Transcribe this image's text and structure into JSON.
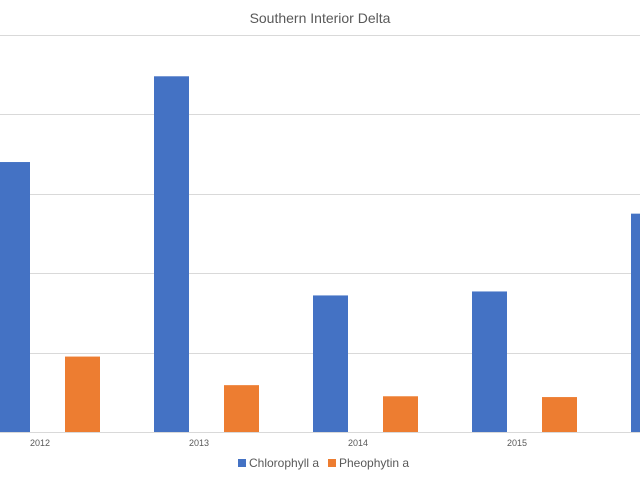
{
  "chart_data": {
    "type": "bar",
    "title": "Southern Interior Delta",
    "xlabel": "",
    "ylabel": "",
    "categories": [
      "2012",
      "2013",
      "2014",
      "2015",
      ""
    ],
    "series": [
      {
        "name": "Chlorophyll a",
        "color": "#4472C4",
        "values": [
          3.4,
          4.48,
          1.72,
          1.77,
          2.75
        ]
      },
      {
        "name": "Pheophytin a",
        "color": "#ED7D31",
        "values": [
          0.95,
          0.59,
          0.45,
          0.44,
          null
        ]
      }
    ],
    "ylim": [
      0,
      5
    ],
    "y_ticks": [
      0,
      1,
      2,
      3,
      4,
      5
    ],
    "grid": true,
    "legend_position": "bottom"
  }
}
